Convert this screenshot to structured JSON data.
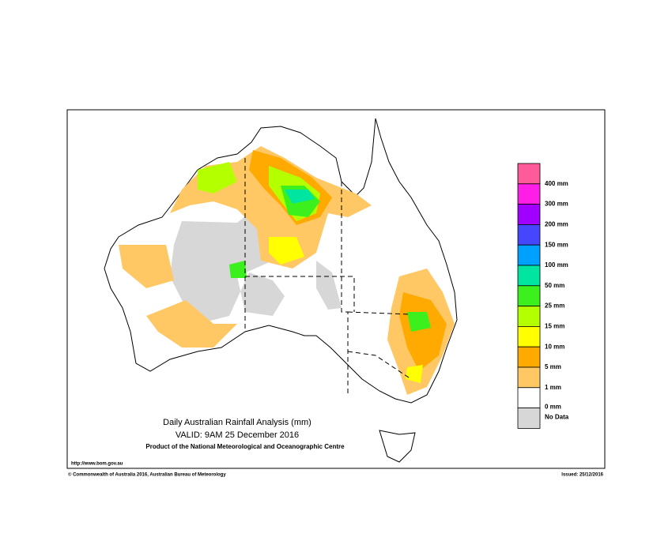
{
  "title": "Daily Australian Rainfall Analysis (mm)",
  "valid": "VALID: 9AM 25 December 2016",
  "product": "Product of the National Meteorological and Oceanographic Centre",
  "url": "http://www.bom.gov.au",
  "copyright": "© Commonwealth of Australia 2016, Australian Bureau of Meteorology",
  "issued": "Issued: 25/12/2016",
  "legend": {
    "items": [
      {
        "label": "400 mm",
        "color": "#ff5a9a"
      },
      {
        "label": "300 mm",
        "color": "#ff1ee6"
      },
      {
        "label": "200 mm",
        "color": "#a000ff"
      },
      {
        "label": "150 mm",
        "color": "#4646ff"
      },
      {
        "label": "100 mm",
        "color": "#00a0ff"
      },
      {
        "label": "50 mm",
        "color": "#00e6a0"
      },
      {
        "label": "25 mm",
        "color": "#3cf01e"
      },
      {
        "label": "15 mm",
        "color": "#b4ff00"
      },
      {
        "label": "10 mm",
        "color": "#ffff00"
      },
      {
        "label": "5 mm",
        "color": "#ffaa00"
      },
      {
        "label": "1 mm",
        "color": "#ffc864"
      },
      {
        "label": "0 mm",
        "color": "#ffffff"
      },
      {
        "label": "No Data",
        "color": "#d7d7d7"
      }
    ]
  }
}
